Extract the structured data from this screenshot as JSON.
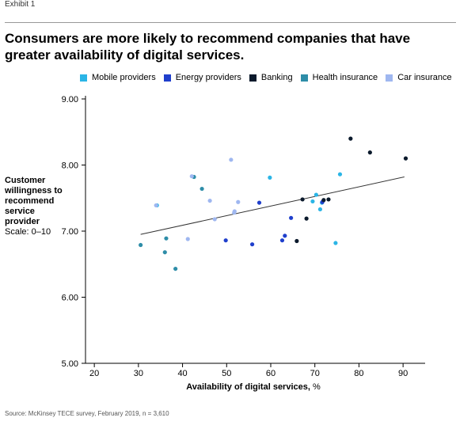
{
  "header": {
    "exhibit": "Exhibit 1",
    "title": "Consumers are more likely to recommend companies that have greater availability of digital services."
  },
  "axis": {
    "ylabel_bold": "Customer willingness to recommend service provider",
    "ylabel_scale": "Scale: 0–10",
    "xlabel_bold": "Availability of digital services,",
    "xlabel_unit": "%"
  },
  "source": "Source: McKinsey TECE survey, February 2019, n = 3,610",
  "chart_data": {
    "type": "scatter",
    "title": "Consumers are more likely to recommend companies that have greater availability of digital services.",
    "xlabel": "Availability of digital services, %",
    "ylabel": "Customer willingness to recommend service provider",
    "xlim": [
      18,
      95
    ],
    "ylim": [
      5.0,
      9.0
    ],
    "x_ticks": [
      20,
      30,
      40,
      50,
      60,
      70,
      80,
      90
    ],
    "y_ticks": [
      5.0,
      6.0,
      7.0,
      8.0,
      9.0
    ],
    "y_tick_labels": [
      "5.00",
      "6.00",
      "7.00",
      "8.00",
      "9.00"
    ],
    "grid": false,
    "legend_position": "top",
    "series": [
      {
        "name": "Mobile providers",
        "color": "#2bb5e6",
        "points": [
          [
            34.2,
            7.39
          ],
          [
            59.8,
            7.81
          ],
          [
            69.5,
            7.45
          ],
          [
            70.3,
            7.55
          ],
          [
            71.2,
            7.33
          ],
          [
            71.6,
            7.43
          ],
          [
            74.7,
            6.82
          ],
          [
            75.7,
            7.86
          ]
        ]
      },
      {
        "name": "Energy providers",
        "color": "#1f3fcc",
        "points": [
          [
            49.8,
            6.86
          ],
          [
            55.8,
            6.8
          ],
          [
            57.4,
            7.43
          ],
          [
            62.6,
            6.86
          ],
          [
            63.2,
            6.93
          ],
          [
            64.6,
            7.2
          ],
          [
            71.7,
            7.44
          ]
        ]
      },
      {
        "name": "Banking",
        "color": "#0b1a2c",
        "points": [
          [
            65.9,
            6.85
          ],
          [
            67.2,
            7.48
          ],
          [
            68.1,
            7.19
          ],
          [
            72.0,
            7.47
          ],
          [
            73.1,
            7.48
          ],
          [
            78.1,
            8.4
          ],
          [
            82.5,
            8.19
          ],
          [
            90.6,
            8.1
          ]
        ]
      },
      {
        "name": "Health insurance",
        "color": "#2e8da8",
        "points": [
          [
            30.5,
            6.79
          ],
          [
            36.0,
            6.68
          ],
          [
            36.3,
            6.89
          ],
          [
            38.4,
            6.43
          ],
          [
            42.6,
            7.82
          ],
          [
            44.4,
            7.64
          ]
        ]
      },
      {
        "name": "Car insurance",
        "color": "#9fb7f0",
        "points": [
          [
            34.0,
            7.39
          ],
          [
            41.2,
            6.88
          ],
          [
            42.1,
            7.83
          ],
          [
            46.2,
            7.46
          ],
          [
            47.3,
            7.18
          ],
          [
            51.0,
            8.08
          ],
          [
            51.7,
            7.28
          ],
          [
            52.6,
            7.44
          ],
          [
            51.8,
            7.3
          ]
        ]
      }
    ],
    "trendline": {
      "x": [
        30.5,
        90.3
      ],
      "y": [
        6.95,
        7.82
      ]
    }
  }
}
